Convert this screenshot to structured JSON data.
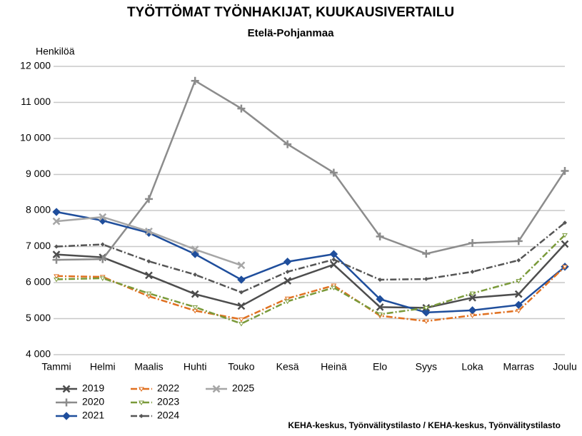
{
  "chart_data": {
    "type": "line",
    "title": "TYÖTTÖMAT TYÖNHAKIJAT, KUUKAUSIVERTAILU",
    "subtitle": "Etelä-Pohjanmaa",
    "y_label": "Henkilöä",
    "source": "KEHA-keskus, Työnvälitystilasto / KEHA-keskus, Työnvälitystilasto",
    "categories": [
      "Tammi",
      "Helmi",
      "Maalis",
      "Huhti",
      "Touko",
      "Kesä",
      "Heinä",
      "Elo",
      "Syys",
      "Loka",
      "Marras",
      "Joulu"
    ],
    "ylim": [
      4000,
      12000
    ],
    "yticks": [
      {
        "value": 4000,
        "label": "4 000"
      },
      {
        "value": 5000,
        "label": "5 000"
      },
      {
        "value": 6000,
        "label": "6 000"
      },
      {
        "value": 7000,
        "label": "7 000"
      },
      {
        "value": 8000,
        "label": "8 000"
      },
      {
        "value": 9000,
        "label": "9 000"
      },
      {
        "value": 10000,
        "label": "10 000"
      },
      {
        "value": 11000,
        "label": "11 000"
      },
      {
        "value": 12000,
        "label": "12 000"
      }
    ],
    "grid": true,
    "legend": "bottom-left",
    "series": [
      {
        "name": "2019",
        "color": "#4d4d4d",
        "marker": "x",
        "dash": "solid",
        "values": [
          6780,
          6700,
          6200,
          5680,
          5350,
          6050,
          6500,
          5320,
          5300,
          5580,
          5680,
          7070
        ]
      },
      {
        "name": "2020",
        "color": "#8c8c8c",
        "marker": "plus",
        "dash": "solid",
        "values": [
          6630,
          6650,
          8320,
          11600,
          10830,
          9840,
          9050,
          7280,
          6800,
          7100,
          7150,
          9100
        ]
      },
      {
        "name": "2021",
        "color": "#1f4e9c",
        "marker": "diamond",
        "dash": "solid",
        "values": [
          7960,
          7720,
          7380,
          6790,
          6080,
          6580,
          6790,
          5540,
          5170,
          5230,
          5380,
          6440
        ]
      },
      {
        "name": "2022",
        "color": "#e07020",
        "marker": "tick",
        "dash": "dashdot",
        "values": [
          6180,
          6160,
          5620,
          5220,
          4980,
          5560,
          5920,
          5080,
          4930,
          5090,
          5220,
          6440
        ]
      },
      {
        "name": "2023",
        "color": "#7a9a3a",
        "marker": "tick",
        "dash": "dashdot",
        "values": [
          6090,
          6120,
          5700,
          5320,
          4860,
          5480,
          5860,
          5120,
          5300,
          5700,
          6050,
          7320
        ]
      },
      {
        "name": "2024",
        "color": "#555555",
        "marker": "dot",
        "dash": "dashdot",
        "values": [
          7000,
          7060,
          6590,
          6220,
          5730,
          6300,
          6640,
          6080,
          6100,
          6300,
          6620,
          7660
        ]
      },
      {
        "name": "2025",
        "color": "#a6a6a6",
        "marker": "x",
        "dash": "solid",
        "values": [
          7700,
          7820,
          7420,
          6920,
          6480,
          null,
          null,
          null,
          null,
          null,
          null,
          null
        ]
      }
    ]
  }
}
